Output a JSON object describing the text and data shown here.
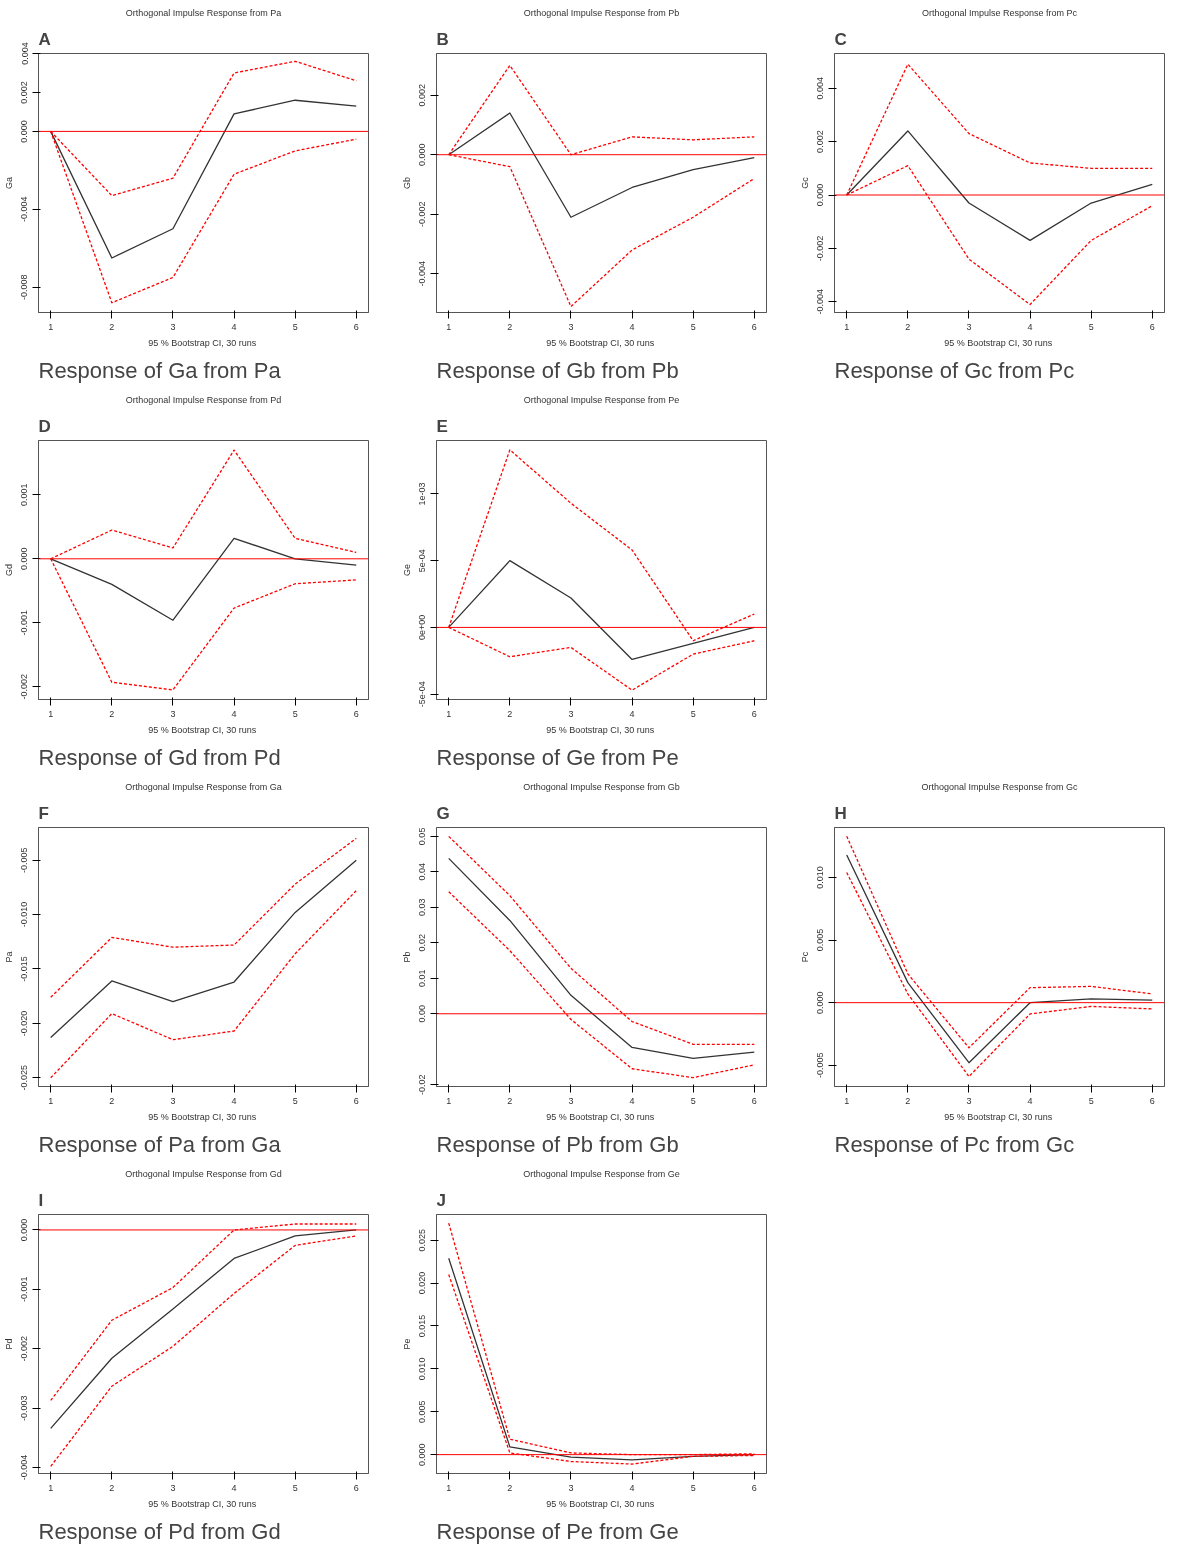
{
  "chart_data": [
    {
      "type": "line",
      "title": "Orthogonal Impulse Response from Pa",
      "xlabel": "95 % Bootstrap CI,  30 runs",
      "ylabel": "Ga",
      "annotations": [
        "A",
        "Response of Ga from Pa"
      ],
      "x": [
        1,
        2,
        3,
        4,
        5,
        6
      ],
      "xlim": [
        0.8,
        6.2
      ],
      "xticks": [
        1,
        2,
        3,
        4,
        5,
        6
      ],
      "ylim": [
        -0.0093,
        0.004
      ],
      "yticks": [
        {
          "value": -0.008,
          "label": "-0.008"
        },
        {
          "value": -0.004,
          "label": "-0.004"
        },
        {
          "value": 0,
          "label": "0.000"
        },
        {
          "value": 0.002,
          "label": "0.002"
        },
        {
          "value": 0.004,
          "label": "0.004"
        }
      ],
      "grid": false,
      "ref_lines": [
        {
          "axis": "y",
          "value": 0,
          "color": "#ff0000"
        }
      ],
      "series": [
        {
          "color": "#333333",
          "line_style": "solid",
          "values": [
            0,
            -0.0065,
            -0.005,
            0.0009,
            0.0016,
            0.0013
          ]
        },
        {
          "color": "#ff0000",
          "line_style": "dashed",
          "values": [
            0,
            -0.0033,
            -0.0024,
            0.003,
            0.0036,
            0.0026
          ]
        },
        {
          "color": "#ff0000",
          "line_style": "dashed",
          "values": [
            0,
            -0.0088,
            -0.0075,
            -0.0022,
            -0.001,
            -0.0004
          ]
        }
      ]
    },
    {
      "type": "line",
      "title": "Orthogonal Impulse Response from Pb",
      "xlabel": "95 % Bootstrap CI,  30 runs",
      "ylabel": "Gb",
      "annotations": [
        "B",
        "Response of Gb from Pb"
      ],
      "x": [
        1,
        2,
        3,
        4,
        5,
        6
      ],
      "xlim": [
        0.8,
        6.2
      ],
      "xticks": [
        1,
        2,
        3,
        4,
        5,
        6
      ],
      "ylim": [
        -0.0053,
        0.0034
      ],
      "yticks": [
        {
          "value": -0.004,
          "label": "-0.004"
        },
        {
          "value": -0.002,
          "label": "-0.002"
        },
        {
          "value": 0,
          "label": "0.000"
        },
        {
          "value": 0.002,
          "label": "0.002"
        }
      ],
      "grid": false,
      "ref_lines": [
        {
          "axis": "y",
          "value": 0,
          "color": "#ff0000"
        }
      ],
      "series": [
        {
          "color": "#333333",
          "line_style": "solid",
          "values": [
            0,
            0.0014,
            -0.0021,
            -0.0011,
            -0.0005,
            -0.0001
          ]
        },
        {
          "color": "#ff0000",
          "line_style": "dashed",
          "values": [
            0,
            0.003,
            0.0,
            0.0006,
            0.0005,
            0.0006
          ]
        },
        {
          "color": "#ff0000",
          "line_style": "dashed",
          "values": [
            0,
            -0.0004,
            -0.0051,
            -0.0032,
            -0.0021,
            -0.0008
          ]
        }
      ]
    },
    {
      "type": "line",
      "title": "Orthogonal Impulse Response from Pc",
      "xlabel": "95 % Bootstrap CI,  30 runs",
      "ylabel": "Gc",
      "annotations": [
        "C",
        "Response of Gc from Pc"
      ],
      "x": [
        1,
        2,
        3,
        4,
        5,
        6
      ],
      "xlim": [
        0.8,
        6.2
      ],
      "xticks": [
        1,
        2,
        3,
        4,
        5,
        6
      ],
      "ylim": [
        -0.0044,
        0.0053
      ],
      "yticks": [
        {
          "value": -0.004,
          "label": "-0.004"
        },
        {
          "value": -0.002,
          "label": "-0.002"
        },
        {
          "value": 0,
          "label": "0.000"
        },
        {
          "value": 0.002,
          "label": "0.002"
        },
        {
          "value": 0.004,
          "label": "0.004"
        }
      ],
      "grid": false,
      "ref_lines": [
        {
          "axis": "y",
          "value": 0,
          "color": "#ff0000"
        }
      ],
      "series": [
        {
          "color": "#333333",
          "line_style": "solid",
          "values": [
            0,
            0.0024,
            -0.0003,
            -0.0017,
            -0.0003,
            0.0004
          ]
        },
        {
          "color": "#ff0000",
          "line_style": "dashed",
          "values": [
            0,
            0.0049,
            0.0023,
            0.0012,
            0.001,
            0.001
          ]
        },
        {
          "color": "#ff0000",
          "line_style": "dashed",
          "values": [
            0,
            0.0011,
            -0.0024,
            -0.0041,
            -0.0017,
            -0.0004
          ]
        }
      ]
    },
    {
      "type": "line",
      "title": "Orthogonal Impulse Response from Pd",
      "xlabel": "95 % Bootstrap CI,  30 runs",
      "ylabel": "Gd",
      "annotations": [
        "D",
        "Response of Gd from Pd"
      ],
      "x": [
        1,
        2,
        3,
        4,
        5,
        6
      ],
      "xlim": [
        0.8,
        6.2
      ],
      "xticks": [
        1,
        2,
        3,
        4,
        5,
        6
      ],
      "ylim": [
        -0.0022,
        0.00185
      ],
      "yticks": [
        {
          "value": -0.002,
          "label": "-0.002"
        },
        {
          "value": -0.001,
          "label": "-0.001"
        },
        {
          "value": 0,
          "label": "0.000"
        },
        {
          "value": 0.001,
          "label": "0.001"
        }
      ],
      "grid": false,
      "ref_lines": [
        {
          "axis": "y",
          "value": 0,
          "color": "#ff0000"
        }
      ],
      "series": [
        {
          "color": "#333333",
          "line_style": "solid",
          "values": [
            0,
            -0.0004,
            -0.00096,
            0.00032,
            0,
            -0.0001
          ]
        },
        {
          "color": "#ff0000",
          "line_style": "dashed",
          "values": [
            0,
            0.00045,
            0.00017,
            0.0017,
            0.00032,
            0.0001
          ]
        },
        {
          "color": "#ff0000",
          "line_style": "dashed",
          "values": [
            0,
            -0.00193,
            -0.00205,
            -0.00077,
            -0.00039,
            -0.00033
          ]
        }
      ]
    },
    {
      "type": "line",
      "title": "Orthogonal Impulse Response from Pe",
      "xlabel": "95 % Bootstrap CI,  30 runs",
      "ylabel": "Ge",
      "annotations": [
        "E",
        "Response of Ge from Pe"
      ],
      "x": [
        1,
        2,
        3,
        4,
        5,
        6
      ],
      "xlim": [
        0.8,
        6.2
      ],
      "xticks": [
        1,
        2,
        3,
        4,
        5,
        6
      ],
      "ylim": [
        -0.00054,
        0.0014
      ],
      "yticks": [
        {
          "value": -0.0005,
          "label": "-5e-04"
        },
        {
          "value": 0,
          "label": "0e+00"
        },
        {
          "value": 0.0005,
          "label": "5e-04"
        },
        {
          "value": 0.001,
          "label": "1e-03"
        }
      ],
      "grid": false,
      "ref_lines": [
        {
          "axis": "y",
          "value": 0,
          "color": "#ff0000"
        }
      ],
      "series": [
        {
          "color": "#333333",
          "line_style": "solid",
          "values": [
            0,
            0.0005,
            0.00022,
            -0.00024,
            -0.00012,
            0
          ]
        },
        {
          "color": "#ff0000",
          "line_style": "dashed",
          "values": [
            0,
            0.00133,
            0.00093,
            0.00058,
            -0.0001,
            0.0001
          ]
        },
        {
          "color": "#ff0000",
          "line_style": "dashed",
          "values": [
            0,
            -0.00022,
            -0.00015,
            -0.00047,
            -0.0002,
            -0.0001
          ]
        }
      ]
    },
    {
      "type": "line",
      "title": "Orthogonal Impulse Response from Ga",
      "xlabel": "95 % Bootstrap CI,  30 runs",
      "ylabel": "Pa",
      "annotations": [
        "F",
        "Response of Pa from Ga"
      ],
      "x": [
        1,
        2,
        3,
        4,
        5,
        6
      ],
      "xlim": [
        0.8,
        6.2
      ],
      "xticks": [
        1,
        2,
        3,
        4,
        5,
        6
      ],
      "ylim": [
        -0.0258,
        -0.002
      ],
      "yticks": [
        {
          "value": -0.025,
          "label": "-0.025"
        },
        {
          "value": -0.02,
          "label": "-0.020"
        },
        {
          "value": -0.015,
          "label": "-0.015"
        },
        {
          "value": -0.01,
          "label": "-0.010"
        },
        {
          "value": -0.005,
          "label": "-0.005"
        }
      ],
      "grid": false,
      "series": [
        {
          "color": "#333333",
          "line_style": "solid",
          "values": [
            -0.0213,
            -0.0161,
            -0.018,
            -0.0162,
            -0.0098,
            -0.005
          ]
        },
        {
          "color": "#ff0000",
          "line_style": "dashed",
          "values": [
            -0.0176,
            -0.0121,
            -0.013,
            -0.0128,
            -0.0072,
            -0.003
          ]
        },
        {
          "color": "#ff0000",
          "line_style": "dashed",
          "values": [
            -0.025,
            -0.0191,
            -0.0215,
            -0.0207,
            -0.0136,
            -0.0078
          ]
        }
      ]
    },
    {
      "type": "line",
      "title": "Orthogonal Impulse Response from Gb",
      "xlabel": "95 % Bootstrap CI,  30 runs",
      "ylabel": "Pb",
      "annotations": [
        "G",
        "Response of Pb from Gb"
      ],
      "x": [
        1,
        2,
        3,
        4,
        5,
        6
      ],
      "xlim": [
        0.8,
        6.2
      ],
      "xticks": [
        1,
        2,
        3,
        4,
        5,
        6
      ],
      "ylim": [
        -0.0205,
        0.0525
      ],
      "yticks": [
        {
          "value": -0.02,
          "label": "-0.02"
        },
        {
          "value": 0,
          "label": "0.00"
        },
        {
          "value": 0.01,
          "label": "0.01"
        },
        {
          "value": 0.02,
          "label": "0.02"
        },
        {
          "value": 0.03,
          "label": "0.03"
        },
        {
          "value": 0.04,
          "label": "0.04"
        },
        {
          "value": 0.05,
          "label": "0.05"
        }
      ],
      "grid": false,
      "ref_lines": [
        {
          "axis": "y",
          "value": 0,
          "color": "#ff0000"
        }
      ],
      "series": [
        {
          "color": "#333333",
          "line_style": "solid",
          "values": [
            0.0438,
            0.0263,
            0.0052,
            -0.0095,
            -0.0126,
            -0.0108
          ]
        },
        {
          "color": "#ff0000",
          "line_style": "dashed",
          "values": [
            0.05,
            0.0333,
            0.0128,
            -0.0022,
            -0.0086,
            -0.0086
          ]
        },
        {
          "color": "#ff0000",
          "line_style": "dashed",
          "values": [
            0.0344,
            0.0178,
            -0.0016,
            -0.0155,
            -0.018,
            -0.0144
          ]
        }
      ]
    },
    {
      "type": "line",
      "title": "Orthogonal Impulse Response from Gc",
      "xlabel": "95 % Bootstrap CI,  30 runs",
      "ylabel": "Pc",
      "annotations": [
        "H",
        "Response of Pc from Gc"
      ],
      "x": [
        1,
        2,
        3,
        4,
        5,
        6
      ],
      "xlim": [
        0.8,
        6.2
      ],
      "xticks": [
        1,
        2,
        3,
        4,
        5,
        6
      ],
      "ylim": [
        -0.0067,
        0.014
      ],
      "yticks": [
        {
          "value": -0.005,
          "label": "-0.005"
        },
        {
          "value": 0,
          "label": "0.000"
        },
        {
          "value": 0.005,
          "label": "0.005"
        },
        {
          "value": 0.01,
          "label": "0.010"
        }
      ],
      "grid": false,
      "ref_lines": [
        {
          "axis": "y",
          "value": 0,
          "color": "#ff0000"
        }
      ],
      "series": [
        {
          "color": "#333333",
          "line_style": "solid",
          "values": [
            0.0118,
            0.0016,
            -0.0048,
            0,
            0.0003,
            0.0002
          ]
        },
        {
          "color": "#ff0000",
          "line_style": "dashed",
          "values": [
            0.0133,
            0.0023,
            -0.0036,
            0.0012,
            0.0013,
            0.0007
          ]
        },
        {
          "color": "#ff0000",
          "line_style": "dashed",
          "values": [
            0.0104,
            0.0007,
            -0.0059,
            -0.0009,
            -0.0003,
            -0.0005
          ]
        }
      ]
    },
    {
      "type": "line",
      "title": "Orthogonal Impulse Response from Gd",
      "xlabel": "95 % Bootstrap CI,  30 runs",
      "ylabel": "Pd",
      "annotations": [
        "I",
        "Response of Pd from Gd"
      ],
      "x": [
        1,
        2,
        3,
        4,
        5,
        6
      ],
      "xlim": [
        0.8,
        6.2
      ],
      "xticks": [
        1,
        2,
        3,
        4,
        5,
        6
      ],
      "ylim": [
        -0.0041,
        0.00026
      ],
      "yticks": [
        {
          "value": -0.004,
          "label": "-0.004"
        },
        {
          "value": -0.003,
          "label": "-0.003"
        },
        {
          "value": -0.002,
          "label": "-0.002"
        },
        {
          "value": -0.001,
          "label": "-0.001"
        },
        {
          "value": 0,
          "label": "0.000"
        }
      ],
      "grid": false,
      "ref_lines": [
        {
          "axis": "y",
          "value": 0,
          "color": "#ff0000"
        }
      ],
      "series": [
        {
          "color": "#333333",
          "line_style": "solid",
          "values": [
            -0.00334,
            -0.00216,
            -0.00133,
            -0.00048,
            -0.0001,
            0
          ]
        },
        {
          "color": "#ff0000",
          "line_style": "dashed",
          "values": [
            -0.00287,
            -0.00152,
            -0.00097,
            0,
            0.0001,
            0.0001
          ]
        },
        {
          "color": "#ff0000",
          "line_style": "dashed",
          "values": [
            -0.00398,
            -0.00263,
            -0.00196,
            -0.00107,
            -0.00026,
            -0.0001
          ]
        }
      ]
    },
    {
      "type": "line",
      "title": "Orthogonal Impulse Response from Ge",
      "xlabel": "95 % Bootstrap CI,  30 runs",
      "ylabel": "Pe",
      "annotations": [
        "J",
        "Response of Pe from Ge"
      ],
      "x": [
        1,
        2,
        3,
        4,
        5,
        6
      ],
      "xlim": [
        0.8,
        6.2
      ],
      "xticks": [
        1,
        2,
        3,
        4,
        5,
        6
      ],
      "ylim": [
        -0.0022,
        0.028
      ],
      "yticks": [
        {
          "value": 0,
          "label": "0.000"
        },
        {
          "value": 0.005,
          "label": "0.005"
        },
        {
          "value": 0.01,
          "label": "0.010"
        },
        {
          "value": 0.015,
          "label": "0.015"
        },
        {
          "value": 0.02,
          "label": "0.020"
        },
        {
          "value": 0.025,
          "label": "0.025"
        }
      ],
      "grid": false,
      "ref_lines": [
        {
          "axis": "y",
          "value": 0,
          "color": "#ff0000"
        }
      ],
      "series": [
        {
          "color": "#333333",
          "line_style": "solid",
          "values": [
            0.0229,
            0.0009,
            -0.0003,
            -0.0006,
            -0.0002,
            0
          ]
        },
        {
          "color": "#ff0000",
          "line_style": "dashed",
          "values": [
            0.027,
            0.0018,
            0.0002,
            0,
            0,
            0.0001
          ]
        },
        {
          "color": "#ff0000",
          "line_style": "dashed",
          "values": [
            0.021,
            0.0002,
            -0.0008,
            -0.0011,
            -0.0002,
            -0.0001
          ]
        }
      ]
    }
  ]
}
